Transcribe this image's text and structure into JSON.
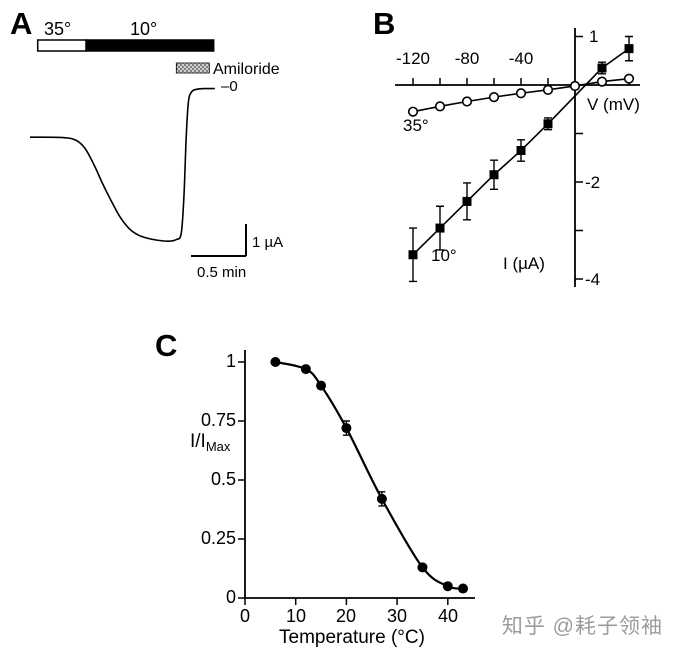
{
  "watermark": {
    "text": "知乎 @耗子领袖",
    "color": "#9c9c9c"
  },
  "panels": {
    "A": {
      "label": "A"
    },
    "B": {
      "label": "B"
    },
    "C": {
      "label": "C"
    }
  },
  "chart_data": [
    {
      "panel": "A",
      "type": "line",
      "x_unit": "min",
      "y_unit": "µA",
      "temperature_bars": [
        {
          "label": "35°",
          "fill": "open",
          "t_start": 0.07,
          "t_end": 0.51
        },
        {
          "label": "10°",
          "fill": "black",
          "t_start": 0.51,
          "t_end": 1.67
        }
      ],
      "amiloride_bar": {
        "label": "Amiloride",
        "t_start": 1.33,
        "t_end": 1.63
      },
      "zero_current_label": "–0",
      "scale_bars": {
        "vertical": {
          "value": 1,
          "label": "1 µA"
        },
        "horizontal": {
          "value": 0.5,
          "label": "0.5 min"
        }
      },
      "trace_t_min": [
        0,
        0.3,
        0.42,
        0.5,
        0.58,
        0.66,
        0.74,
        0.82,
        0.9,
        0.98,
        1.06,
        1.16,
        1.26,
        1.33,
        1.375,
        1.4,
        1.42,
        1.44,
        1.47,
        1.52,
        1.6,
        1.68
      ],
      "trace_i_uA": [
        -1.6,
        -1.61,
        -1.7,
        -1.95,
        -2.45,
        -3.05,
        -3.6,
        -4.1,
        -4.45,
        -4.65,
        -4.75,
        -4.82,
        -4.85,
        -4.8,
        -4.6,
        -3.4,
        -1.6,
        -0.5,
        -0.18,
        -0.1,
        -0.08,
        -0.08
      ]
    },
    {
      "panel": "B",
      "type": "scatter",
      "xlabel": "V (mV)",
      "ylabel": "I (µA)",
      "xlim": [
        -135,
        48
      ],
      "ylim": [
        -4.35,
        1.2
      ],
      "x_ticks": [
        -120,
        -100,
        -80,
        -60,
        -40,
        -20,
        20,
        40
      ],
      "x_tick_labels": [
        "-120",
        "-80",
        "-40"
      ],
      "y_ticks": [
        1,
        -1,
        -2,
        -3,
        -4
      ],
      "y_tick_labels": [
        "1",
        "-2",
        "-4"
      ],
      "series": [
        {
          "name": "35°",
          "marker": "open-circle",
          "x": [
            -120,
            -100,
            -80,
            -60,
            -40,
            -20,
            0,
            20,
            40
          ],
          "y": [
            -0.55,
            -0.44,
            -0.34,
            -0.25,
            -0.17,
            -0.1,
            -0.02,
            0.07,
            0.13
          ]
        },
        {
          "name": "10°",
          "marker": "filled-square",
          "x": [
            -120,
            -100,
            -80,
            -60,
            -40,
            -20,
            20,
            40
          ],
          "y": [
            -3.5,
            -2.95,
            -2.4,
            -1.85,
            -1.35,
            -0.8,
            0.35,
            0.75
          ],
          "yerr": [
            0.55,
            0.45,
            0.38,
            0.3,
            0.22,
            0.12,
            0.12,
            0.25
          ]
        }
      ]
    },
    {
      "panel": "C",
      "type": "scatter",
      "xlabel": "Temperature (°C)",
      "ylabel_main": "I/I",
      "ylabel_sub": "Max",
      "xlim": [
        0,
        45
      ],
      "ylim": [
        0,
        1.05
      ],
      "x_ticks": [
        0,
        10,
        20,
        30,
        40
      ],
      "x_tick_labels": [
        "0",
        "10",
        "20",
        "30",
        "40"
      ],
      "y_ticks": [
        0,
        0.25,
        0.5,
        0.75,
        1
      ],
      "y_tick_labels": [
        "0",
        "0.25",
        "0.5",
        "0.75",
        "1"
      ],
      "points": {
        "x": [
          6,
          12,
          15,
          20,
          27,
          35,
          40,
          43
        ],
        "y": [
          1.0,
          0.97,
          0.9,
          0.72,
          0.42,
          0.13,
          0.05,
          0.04
        ],
        "yerr": [
          0,
          0,
          0,
          0.03,
          0.03,
          0,
          0,
          0
        ]
      }
    }
  ]
}
